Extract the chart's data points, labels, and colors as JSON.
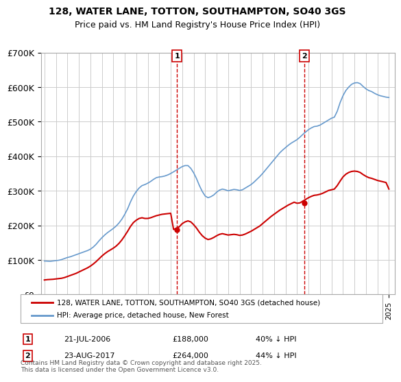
{
  "title1": "128, WATER LANE, TOTTON, SOUTHAMPTON, SO40 3GS",
  "title2": "Price paid vs. HM Land Registry's House Price Index (HPI)",
  "legend1": "128, WATER LANE, TOTTON, SOUTHAMPTON, SO40 3GS (detached house)",
  "legend2": "HPI: Average price, detached house, New Forest",
  "sale1_date": "21-JUL-2006",
  "sale1_price": 188000,
  "sale1_label": "40% ↓ HPI",
  "sale2_date": "23-AUG-2017",
  "sale2_price": 264000,
  "sale2_label": "44% ↓ HPI",
  "footnote": "Contains HM Land Registry data © Crown copyright and database right 2025.\nThis data is licensed under the Open Government Licence v3.0.",
  "line_color_red": "#cc0000",
  "line_color_blue": "#6699cc",
  "bg_color": "#ffffff",
  "grid_color": "#cccccc",
  "ylim": [
    0,
    700000
  ],
  "yticks": [
    0,
    100000,
    200000,
    300000,
    400000,
    500000,
    600000,
    700000
  ],
  "ytick_labels": [
    "£0",
    "£100K",
    "£200K",
    "£300K",
    "£400K",
    "£500K",
    "£600K",
    "£700K"
  ],
  "sale1_x": 2006.54,
  "sale2_x": 2017.64,
  "hpi_years": [
    1995.0,
    1995.25,
    1995.5,
    1995.75,
    1996.0,
    1996.25,
    1996.5,
    1996.75,
    1997.0,
    1997.25,
    1997.5,
    1997.75,
    1998.0,
    1998.25,
    1998.5,
    1998.75,
    1999.0,
    1999.25,
    1999.5,
    1999.75,
    2000.0,
    2000.25,
    2000.5,
    2000.75,
    2001.0,
    2001.25,
    2001.5,
    2001.75,
    2002.0,
    2002.25,
    2002.5,
    2002.75,
    2003.0,
    2003.25,
    2003.5,
    2003.75,
    2004.0,
    2004.25,
    2004.5,
    2004.75,
    2005.0,
    2005.25,
    2005.5,
    2005.75,
    2006.0,
    2006.25,
    2006.5,
    2006.75,
    2007.0,
    2007.25,
    2007.5,
    2007.75,
    2008.0,
    2008.25,
    2008.5,
    2008.75,
    2009.0,
    2009.25,
    2009.5,
    2009.75,
    2010.0,
    2010.25,
    2010.5,
    2010.75,
    2011.0,
    2011.25,
    2011.5,
    2011.75,
    2012.0,
    2012.25,
    2012.5,
    2012.75,
    2013.0,
    2013.25,
    2013.5,
    2013.75,
    2014.0,
    2014.25,
    2014.5,
    2014.75,
    2015.0,
    2015.25,
    2015.5,
    2015.75,
    2016.0,
    2016.25,
    2016.5,
    2016.75,
    2017.0,
    2017.25,
    2017.5,
    2017.75,
    2018.0,
    2018.25,
    2018.5,
    2018.75,
    2019.0,
    2019.25,
    2019.5,
    2019.75,
    2020.0,
    2020.25,
    2020.5,
    2020.75,
    2021.0,
    2021.25,
    2021.5,
    2021.75,
    2022.0,
    2022.25,
    2022.5,
    2022.75,
    2023.0,
    2023.25,
    2023.5,
    2023.75,
    2024.0,
    2024.25,
    2024.5,
    2024.75,
    2025.0
  ],
  "hpi_values": [
    97000,
    96500,
    96000,
    97000,
    98000,
    99000,
    101000,
    104000,
    107000,
    109000,
    112000,
    115000,
    118000,
    121000,
    124000,
    127000,
    131000,
    137000,
    145000,
    155000,
    164000,
    172000,
    179000,
    185000,
    191000,
    198000,
    207000,
    218000,
    232000,
    248000,
    268000,
    285000,
    298000,
    308000,
    315000,
    318000,
    322000,
    327000,
    333000,
    338000,
    340000,
    341000,
    343000,
    346000,
    350000,
    355000,
    360000,
    365000,
    370000,
    373000,
    373000,
    365000,
    352000,
    335000,
    315000,
    298000,
    285000,
    280000,
    283000,
    288000,
    296000,
    302000,
    305000,
    303000,
    300000,
    302000,
    304000,
    303000,
    301000,
    303000,
    308000,
    313000,
    318000,
    325000,
    333000,
    341000,
    350000,
    360000,
    370000,
    380000,
    390000,
    400000,
    410000,
    418000,
    425000,
    432000,
    438000,
    443000,
    448000,
    455000,
    463000,
    470000,
    477000,
    482000,
    486000,
    487000,
    490000,
    495000,
    500000,
    505000,
    510000,
    513000,
    530000,
    555000,
    575000,
    590000,
    600000,
    608000,
    612000,
    613000,
    610000,
    602000,
    595000,
    590000,
    587000,
    582000,
    578000,
    575000,
    573000,
    571000,
    570000
  ],
  "red_years": [
    1995.0,
    1995.25,
    1995.5,
    1995.75,
    1996.0,
    1996.25,
    1996.5,
    1996.75,
    1997.0,
    1997.25,
    1997.5,
    1997.75,
    1998.0,
    1998.25,
    1998.5,
    1998.75,
    1999.0,
    1999.25,
    1999.5,
    1999.75,
    2000.0,
    2000.25,
    2000.5,
    2000.75,
    2001.0,
    2001.25,
    2001.5,
    2001.75,
    2002.0,
    2002.25,
    2002.5,
    2002.75,
    2003.0,
    2003.25,
    2003.5,
    2003.75,
    2004.0,
    2004.25,
    2004.5,
    2004.75,
    2005.0,
    2005.25,
    2005.5,
    2005.75,
    2006.0,
    2006.25,
    2006.5,
    2006.75,
    2007.0,
    2007.25,
    2007.5,
    2007.75,
    2008.0,
    2008.25,
    2008.5,
    2008.75,
    2009.0,
    2009.25,
    2009.5,
    2009.75,
    2010.0,
    2010.25,
    2010.5,
    2010.75,
    2011.0,
    2011.25,
    2011.5,
    2011.75,
    2012.0,
    2012.25,
    2012.5,
    2012.75,
    2013.0,
    2013.25,
    2013.5,
    2013.75,
    2014.0,
    2014.25,
    2014.5,
    2014.75,
    2015.0,
    2015.25,
    2015.5,
    2015.75,
    2016.0,
    2016.25,
    2016.5,
    2016.75,
    2017.0,
    2017.25,
    2017.5,
    2017.75,
    2018.0,
    2018.25,
    2018.5,
    2018.75,
    2019.0,
    2019.25,
    2019.5,
    2019.75,
    2020.0,
    2020.25,
    2020.5,
    2020.75,
    2021.0,
    2021.25,
    2021.5,
    2021.75,
    2022.0,
    2022.25,
    2022.5,
    2022.75,
    2023.0,
    2023.25,
    2023.5,
    2023.75,
    2024.0,
    2024.25,
    2024.5,
    2024.75,
    2025.0
  ],
  "red_values": [
    42000,
    43000,
    43500,
    44000,
    45000,
    46000,
    47000,
    49000,
    52000,
    55000,
    58000,
    61000,
    65000,
    69000,
    73000,
    77000,
    82000,
    88000,
    95000,
    103000,
    111000,
    118000,
    124000,
    129000,
    134000,
    140000,
    148000,
    158000,
    170000,
    183000,
    197000,
    208000,
    215000,
    220000,
    222000,
    220000,
    220000,
    222000,
    225000,
    228000,
    230000,
    232000,
    233000,
    234000,
    235000,
    188000,
    192000,
    196000,
    205000,
    210000,
    213000,
    210000,
    202000,
    192000,
    180000,
    170000,
    163000,
    159000,
    161000,
    165000,
    170000,
    174000,
    176000,
    174000,
    172000,
    173000,
    174000,
    173000,
    171000,
    172000,
    175000,
    179000,
    183000,
    188000,
    193000,
    198000,
    205000,
    212000,
    219000,
    226000,
    232000,
    238000,
    244000,
    249000,
    254000,
    259000,
    263000,
    267000,
    264000,
    265000,
    270000,
    275000,
    280000,
    284000,
    287000,
    288000,
    290000,
    293000,
    297000,
    301000,
    303000,
    305000,
    315000,
    328000,
    340000,
    348000,
    353000,
    356000,
    357000,
    356000,
    353000,
    347000,
    342000,
    338000,
    336000,
    333000,
    330000,
    328000,
    326000,
    324000,
    305000
  ]
}
